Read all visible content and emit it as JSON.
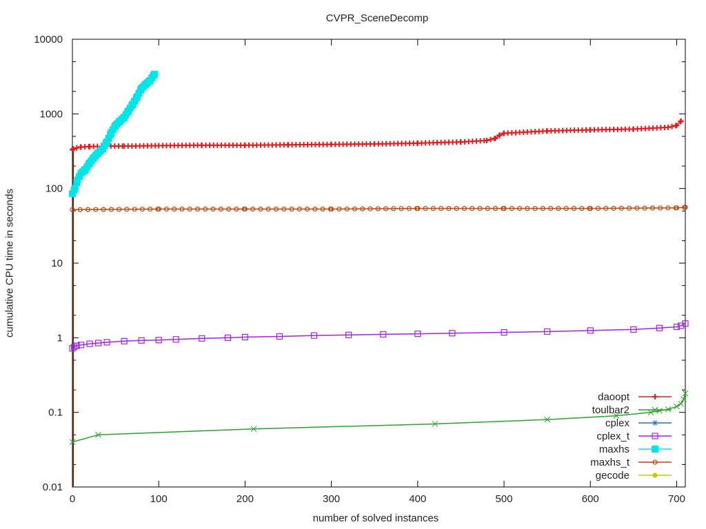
{
  "chart_data": {
    "type": "line",
    "title": "CVPR_SceneDecomp",
    "xlabel": "number of solved instances",
    "ylabel": "cumulative CPU time in seconds",
    "yscale": "log",
    "xlim": [
      0,
      710
    ],
    "ylim": [
      0.01,
      10000
    ],
    "x_ticks": [
      "0",
      "100",
      "200",
      "300",
      "400",
      "500",
      "600",
      "700"
    ],
    "y_ticks": [
      "0.01",
      "0.1",
      "1",
      "10",
      "100",
      "1000",
      "10000"
    ],
    "grid": false,
    "legend_position": "bottom-right inside",
    "series": [
      {
        "name": "daoopt",
        "color": "#e41a1c",
        "marker": "+",
        "x": [
          0,
          1,
          5,
          10,
          20,
          40,
          60,
          100,
          150,
          200,
          250,
          300,
          350,
          400,
          450,
          480,
          490,
          495,
          500,
          550,
          600,
          650,
          690,
          700,
          705
        ],
        "y": [
          330,
          340,
          350,
          360,
          365,
          370,
          370,
          375,
          380,
          380,
          385,
          390,
          395,
          405,
          420,
          440,
          470,
          520,
          550,
          590,
          610,
          625,
          660,
          700,
          800
        ]
      },
      {
        "name": "toulbar2",
        "color": "#2ca02c",
        "marker": "x",
        "x": [
          0,
          30,
          210,
          420,
          550,
          630,
          670,
          680,
          690,
          700,
          705,
          708,
          710
        ],
        "y": [
          0.04,
          0.05,
          0.06,
          0.07,
          0.08,
          0.09,
          0.1,
          0.105,
          0.11,
          0.12,
          0.13,
          0.15,
          0.18
        ]
      },
      {
        "name": "cplex",
        "color": "#1f6fc8",
        "marker": "*",
        "x": [],
        "y": []
      },
      {
        "name": "cplex_t",
        "color": "#a020f0",
        "marker": "square-open",
        "x": [
          0,
          2,
          5,
          10,
          20,
          30,
          40,
          60,
          80,
          100,
          120,
          150,
          180,
          200,
          240,
          280,
          320,
          360,
          400,
          440,
          500,
          550,
          600,
          650,
          680,
          700,
          705,
          710
        ],
        "y": [
          0.72,
          0.75,
          0.78,
          0.8,
          0.83,
          0.85,
          0.87,
          0.9,
          0.92,
          0.93,
          0.95,
          0.98,
          1.0,
          1.02,
          1.04,
          1.07,
          1.09,
          1.11,
          1.13,
          1.15,
          1.18,
          1.21,
          1.25,
          1.29,
          1.35,
          1.4,
          1.45,
          1.55
        ]
      },
      {
        "name": "maxhs",
        "color": "#00e5e5",
        "marker": "filled-square",
        "x": [
          0,
          3,
          6,
          10,
          15,
          20,
          25,
          30,
          35,
          40,
          45,
          50,
          55,
          60,
          65,
          70,
          75,
          80,
          85,
          90,
          95
        ],
        "y": [
          85,
          100,
          130,
          160,
          180,
          220,
          260,
          300,
          340,
          420,
          560,
          700,
          800,
          900,
          1100,
          1350,
          1700,
          2200,
          2500,
          2800,
          3400
        ]
      },
      {
        "name": "maxhs_t",
        "color": "#b8480f",
        "marker": "circle-open",
        "x": [
          0,
          100,
          200,
          300,
          400,
          500,
          600,
          700,
          710
        ],
        "y": [
          52,
          53,
          53,
          53,
          54,
          54,
          54,
          55,
          56
        ]
      },
      {
        "name": "gecode",
        "color": "#c8c800",
        "marker": "filled-circle",
        "x": [],
        "y": []
      }
    ]
  }
}
